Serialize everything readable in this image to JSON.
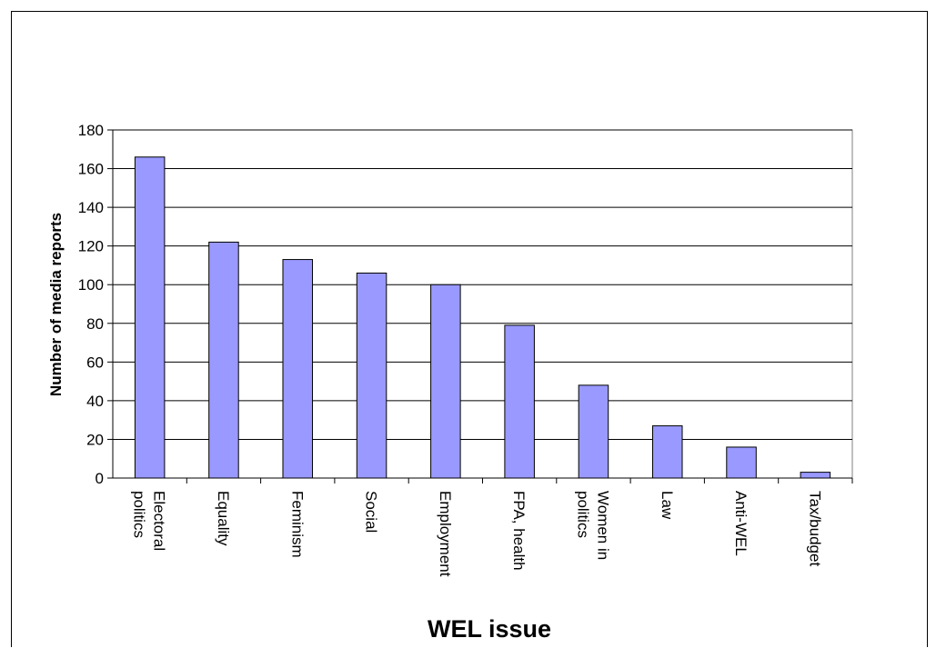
{
  "chart_data": {
    "type": "bar",
    "categories": [
      [
        "Electoral",
        "politics"
      ],
      [
        "Equality"
      ],
      [
        "Feminism"
      ],
      [
        "Social"
      ],
      [
        "Employment"
      ],
      [
        "FPA, health"
      ],
      [
        "Women in",
        "politics"
      ],
      [
        "Law"
      ],
      [
        "Anti-WEL"
      ],
      [
        "Tax/budget"
      ]
    ],
    "values": [
      166,
      122,
      113,
      106,
      100,
      79,
      48,
      27,
      16,
      3
    ],
    "title": "",
    "xlabel": "WEL issue",
    "ylabel": "Number of media reports",
    "ylim": [
      0,
      180
    ],
    "yticks": [
      "0",
      "20",
      "40",
      "60",
      "80",
      "100",
      "120",
      "140",
      "160",
      "180"
    ],
    "grid": true,
    "legend": "none",
    "bar_color": "#9999ff"
  }
}
